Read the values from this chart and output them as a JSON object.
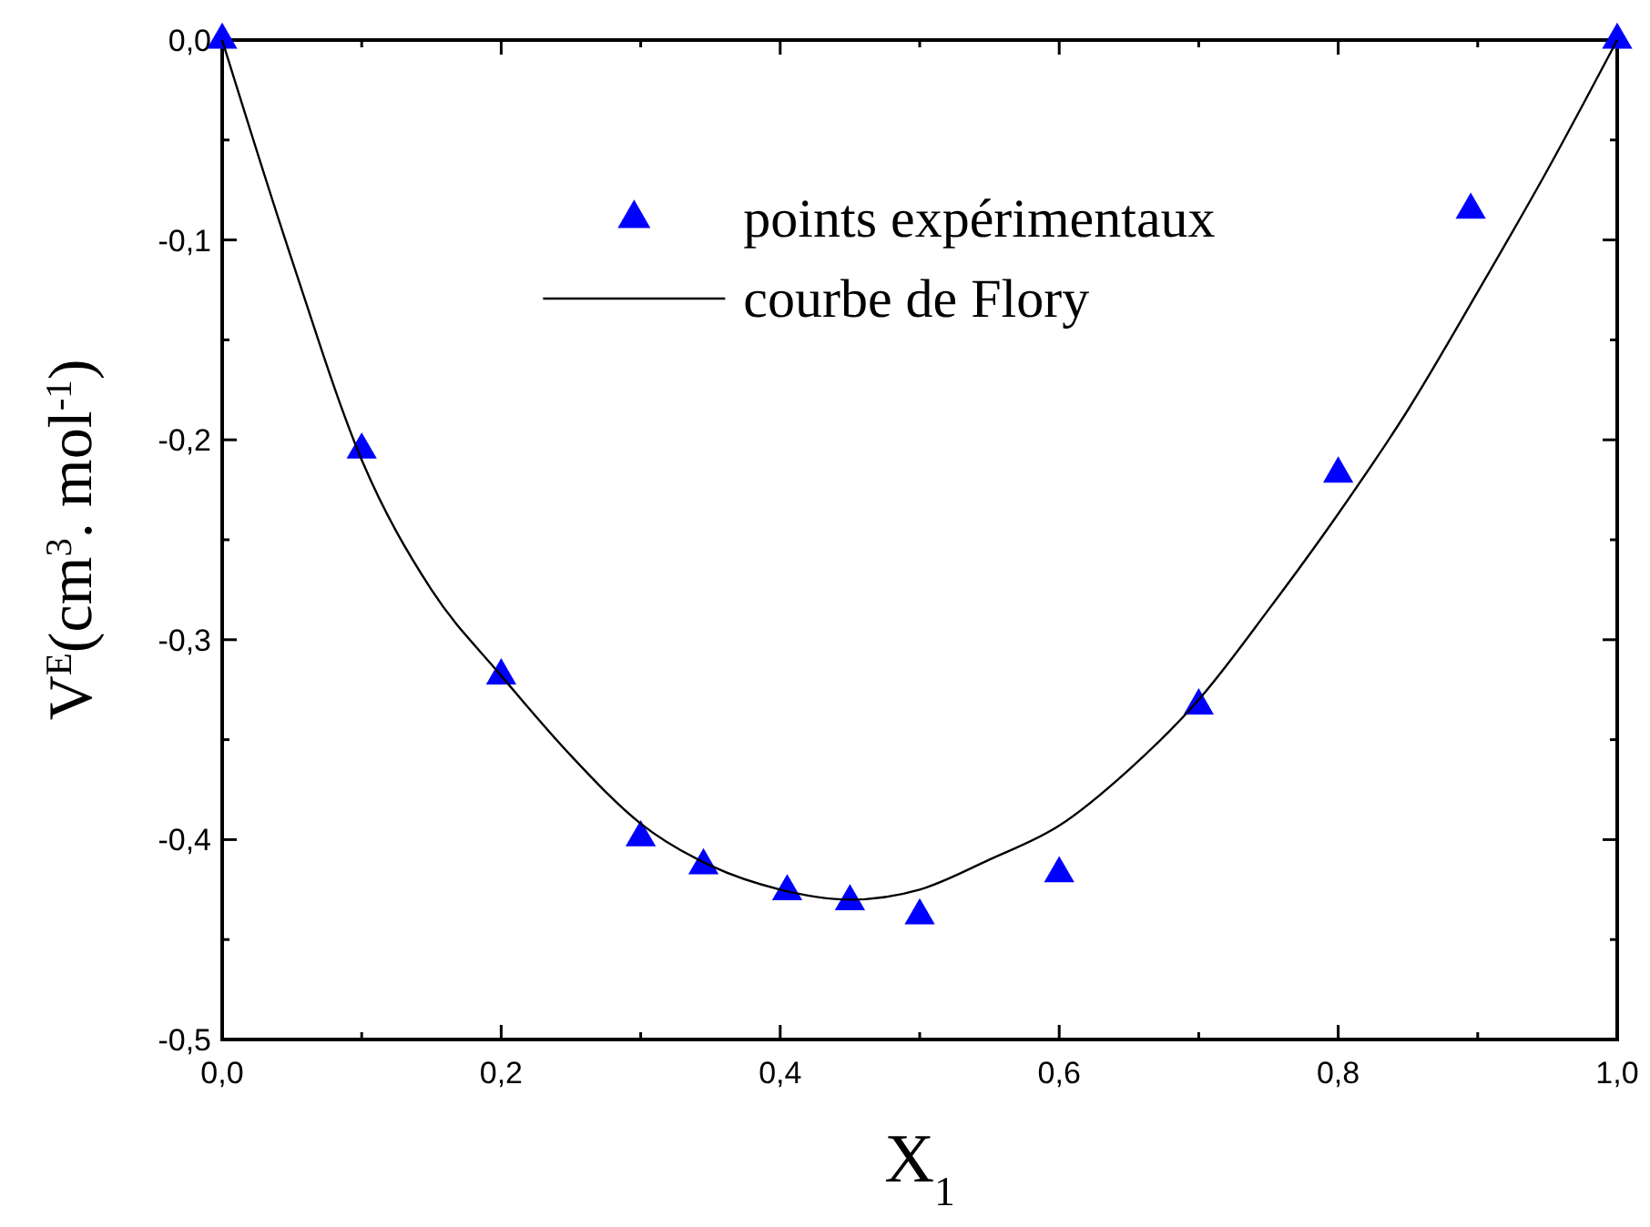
{
  "chart_data": {
    "type": "scatter",
    "xlabel": "X$_{1}$",
    "ylabel": "V$^{E}$(cm$^{3}$. mol$^{-1}$)",
    "xlim": [
      0,
      1
    ],
    "ylim": [
      -0.5,
      0
    ],
    "xticks": [
      {
        "value": 0,
        "label": "0,0"
      },
      {
        "value": 0.1,
        "label": null
      },
      {
        "value": 0.2,
        "label": "0,2"
      },
      {
        "value": 0.3,
        "label": null
      },
      {
        "value": 0.4,
        "label": "0,4"
      },
      {
        "value": 0.5,
        "label": null
      },
      {
        "value": 0.6,
        "label": "0,6"
      },
      {
        "value": 0.7,
        "label": null
      },
      {
        "value": 0.8,
        "label": "0,8"
      },
      {
        "value": 0.9,
        "label": null
      },
      {
        "value": 1,
        "label": "1,0"
      }
    ],
    "yticks": [
      {
        "value": -0.5,
        "label": "-0,5"
      },
      {
        "value": -0.45,
        "label": null
      },
      {
        "value": -0.4,
        "label": "-0,4"
      },
      {
        "value": -0.35,
        "label": null
      },
      {
        "value": -0.3,
        "label": "-0,3"
      },
      {
        "value": -0.25,
        "label": null
      },
      {
        "value": -0.2,
        "label": "-0,2"
      },
      {
        "value": -0.15,
        "label": null
      },
      {
        "value": -0.1,
        "label": "-0,1"
      },
      {
        "value": -0.05,
        "label": null
      },
      {
        "value": 0,
        "label": "0,0"
      }
    ],
    "grid": false,
    "legend": "top",
    "series": [
      {
        "name": "points expérimentaux",
        "marker": "triangle",
        "color": "#0000ff",
        "x": [
          0,
          0.1,
          0.2,
          0.3,
          0.345,
          0.405,
          0.45,
          0.5,
          0.6,
          0.7,
          0.8,
          0.895,
          1
        ],
        "values": [
          0,
          -0.205,
          -0.318,
          -0.399,
          -0.413,
          -0.426,
          -0.431,
          -0.438,
          -0.417,
          -0.333,
          -0.217,
          -0.085,
          0
        ]
      },
      {
        "name": "courbe de Flory",
        "type": "line",
        "marker": "none",
        "line_style": "solid",
        "color": "#000000",
        "x": [
          0,
          0.05,
          0.1,
          0.15,
          0.2,
          0.25,
          0.3,
          0.35,
          0.4,
          0.45,
          0.5,
          0.55,
          0.6,
          0.65,
          0.7,
          0.75,
          0.8,
          0.85,
          0.9,
          0.95,
          1
        ],
        "values": [
          0,
          -0.11,
          -0.21,
          -0.275,
          -0.318,
          -0.358,
          -0.392,
          -0.413,
          -0.425,
          -0.43,
          -0.425,
          -0.41,
          -0.393,
          -0.365,
          -0.33,
          -0.285,
          -0.237,
          -0.185,
          -0.126,
          -0.065,
          0
        ]
      }
    ]
  }
}
